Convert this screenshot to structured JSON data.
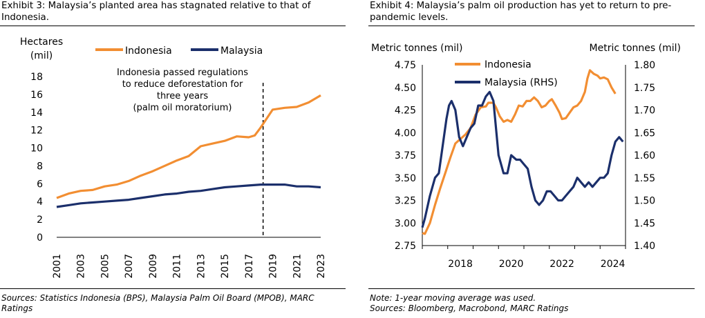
{
  "exhibit3": {
    "title_line1": "Exhibit 3: Malaysia’s planted area has stagnated relative to that of",
    "title_line2": "Indonesia.",
    "source_line1": "Sources: Statistics Indonesia (BPS), Malaysia Palm Oil Board (MPOB), MARC",
    "source_line2": "Ratings"
  },
  "exhibit4": {
    "title_line1": "Exhibit 4: Malaysia’s palm oil production has yet to return to pre-",
    "title_line2": "pandemic levels.",
    "note": "Note: 1-year moving average was used.",
    "source_line": "Sources: Bloomberg, Macrobond, MARC Ratings"
  },
  "chart_data": [
    {
      "type": "line",
      "ylabel_line1": "Hectares",
      "ylabel_line2": "(mil)",
      "ylim": [
        0,
        18
      ],
      "yticks": [
        0,
        2,
        4,
        6,
        8,
        10,
        12,
        14,
        16,
        18
      ],
      "xlim": [
        2001,
        2023
      ],
      "xticks": [
        "2001",
        "2003",
        "2005",
        "2007",
        "2009",
        "2011",
        "2013",
        "2015",
        "2017",
        "2019",
        "2021",
        "2023"
      ],
      "legend_placement": "top",
      "grid": false,
      "annotation": {
        "lines": [
          "Indonesia passed regulations",
          "to reduce deforestation for",
          "three years",
          "(palm oil moratorium)"
        ],
        "x": 2018.2
      },
      "series": [
        {
          "name": "Indonesia",
          "color": "#f28e32",
          "points": [
            [
              2001,
              4.4
            ],
            [
              2002,
              4.9
            ],
            [
              2003,
              5.2
            ],
            [
              2004,
              5.3
            ],
            [
              2005,
              5.7
            ],
            [
              2006,
              5.9
            ],
            [
              2007,
              6.3
            ],
            [
              2008,
              6.9
            ],
            [
              2009,
              7.4
            ],
            [
              2010,
              8.0
            ],
            [
              2011,
              8.6
            ],
            [
              2012,
              9.1
            ],
            [
              2013,
              10.2
            ],
            [
              2014,
              10.5
            ],
            [
              2015,
              10.8
            ],
            [
              2016,
              11.3
            ],
            [
              2017,
              11.2
            ],
            [
              2017.5,
              11.4
            ],
            [
              2018,
              12.3
            ],
            [
              2019,
              14.3
            ],
            [
              2020,
              14.5
            ],
            [
              2021,
              14.6
            ],
            [
              2022,
              15.1
            ],
            [
              2023,
              15.9
            ]
          ]
        },
        {
          "name": "Malaysia",
          "color": "#1b2f6b",
          "points": [
            [
              2001,
              3.4
            ],
            [
              2002,
              3.6
            ],
            [
              2003,
              3.8
            ],
            [
              2004,
              3.9
            ],
            [
              2005,
              4.0
            ],
            [
              2006,
              4.1
            ],
            [
              2007,
              4.2
            ],
            [
              2008,
              4.4
            ],
            [
              2009,
              4.6
            ],
            [
              2010,
              4.8
            ],
            [
              2011,
              4.9
            ],
            [
              2012,
              5.1
            ],
            [
              2013,
              5.2
            ],
            [
              2014,
              5.4
            ],
            [
              2015,
              5.6
            ],
            [
              2016,
              5.7
            ],
            [
              2017,
              5.8
            ],
            [
              2018,
              5.9
            ],
            [
              2019,
              5.9
            ],
            [
              2020,
              5.9
            ],
            [
              2021,
              5.7
            ],
            [
              2022,
              5.7
            ],
            [
              2023,
              5.6
            ]
          ]
        }
      ]
    },
    {
      "type": "line",
      "ylabel_left": "Metric tonnes (mil)",
      "ylabel_right": "Metric tonnes (mil)",
      "ylim_left": [
        2.75,
        4.75
      ],
      "yticks_left": [
        2.75,
        3.0,
        3.25,
        3.5,
        3.75,
        4.0,
        4.25,
        4.5,
        4.75
      ],
      "ytick_labels_left": [
        "2.75",
        "3.00",
        "3.25",
        "3.50",
        "3.75",
        "4.00",
        "4.25",
        "4.50",
        "4.75"
      ],
      "ylim_right": [
        1.4,
        1.8
      ],
      "yticks_right": [
        1.4,
        1.45,
        1.5,
        1.55,
        1.6,
        1.65,
        1.7,
        1.75,
        1.8
      ],
      "ytick_labels_right": [
        "1.40",
        "1.45",
        "1.50",
        "1.55",
        "1.60",
        "1.65",
        "1.70",
        "1.75",
        "1.80"
      ],
      "xlim": [
        2017,
        2025
      ],
      "xticks": [
        2018,
        2020,
        2022,
        2024
      ],
      "xtick_labels": [
        "2018",
        "2020",
        "2022",
        "2024"
      ],
      "legend_placement": "top-left",
      "grid": false,
      "series": [
        {
          "name": "Indonesia",
          "axis": "left",
          "color": "#f28e32",
          "points": [
            [
              2017.0,
              2.89
            ],
            [
              2017.1,
              2.88
            ],
            [
              2017.3,
              3.0
            ],
            [
              2017.5,
              3.2
            ],
            [
              2017.7,
              3.38
            ],
            [
              2017.9,
              3.55
            ],
            [
              2018.1,
              3.72
            ],
            [
              2018.3,
              3.88
            ],
            [
              2018.5,
              3.93
            ],
            [
              2018.7,
              3.98
            ],
            [
              2018.9,
              4.05
            ],
            [
              2019.1,
              4.2
            ],
            [
              2019.3,
              4.28
            ],
            [
              2019.5,
              4.29
            ],
            [
              2019.6,
              4.33
            ],
            [
              2019.8,
              4.33
            ],
            [
              2019.9,
              4.28
            ],
            [
              2020.05,
              4.18
            ],
            [
              2020.2,
              4.12
            ],
            [
              2020.35,
              4.14
            ],
            [
              2020.5,
              4.12
            ],
            [
              2020.65,
              4.2
            ],
            [
              2020.8,
              4.3
            ],
            [
              2020.95,
              4.29
            ],
            [
              2021.1,
              4.35
            ],
            [
              2021.25,
              4.35
            ],
            [
              2021.4,
              4.39
            ],
            [
              2021.55,
              4.35
            ],
            [
              2021.7,
              4.28
            ],
            [
              2021.85,
              4.3
            ],
            [
              2022.0,
              4.35
            ],
            [
              2022.1,
              4.37
            ],
            [
              2022.25,
              4.3
            ],
            [
              2022.4,
              4.22
            ],
            [
              2022.5,
              4.15
            ],
            [
              2022.65,
              4.16
            ],
            [
              2022.8,
              4.22
            ],
            [
              2022.95,
              4.28
            ],
            [
              2023.1,
              4.3
            ],
            [
              2023.25,
              4.35
            ],
            [
              2023.4,
              4.45
            ],
            [
              2023.5,
              4.6
            ],
            [
              2023.6,
              4.69
            ],
            [
              2023.75,
              4.65
            ],
            [
              2023.9,
              4.63
            ],
            [
              2024.0,
              4.6
            ],
            [
              2024.15,
              4.61
            ],
            [
              2024.3,
              4.59
            ],
            [
              2024.45,
              4.5
            ],
            [
              2024.6,
              4.43
            ]
          ]
        },
        {
          "name": "Malaysia (RHS)",
          "axis": "right",
          "color": "#1b2f6b",
          "points": [
            [
              2017.0,
              1.44
            ],
            [
              2017.1,
              1.46
            ],
            [
              2017.3,
              1.51
            ],
            [
              2017.5,
              1.55
            ],
            [
              2017.65,
              1.56
            ],
            [
              2017.8,
              1.62
            ],
            [
              2017.95,
              1.68
            ],
            [
              2018.05,
              1.71
            ],
            [
              2018.15,
              1.72
            ],
            [
              2018.3,
              1.7
            ],
            [
              2018.45,
              1.64
            ],
            [
              2018.6,
              1.62
            ],
            [
              2018.75,
              1.64
            ],
            [
              2018.9,
              1.66
            ],
            [
              2019.05,
              1.67
            ],
            [
              2019.2,
              1.71
            ],
            [
              2019.35,
              1.71
            ],
            [
              2019.5,
              1.73
            ],
            [
              2019.65,
              1.74
            ],
            [
              2019.8,
              1.72
            ],
            [
              2020.0,
              1.6
            ],
            [
              2020.2,
              1.56
            ],
            [
              2020.35,
              1.56
            ],
            [
              2020.5,
              1.6
            ],
            [
              2020.7,
              1.59
            ],
            [
              2020.85,
              1.59
            ],
            [
              2021.0,
              1.58
            ],
            [
              2021.15,
              1.57
            ],
            [
              2021.3,
              1.53
            ],
            [
              2021.45,
              1.5
            ],
            [
              2021.6,
              1.49
            ],
            [
              2021.75,
              1.5
            ],
            [
              2021.9,
              1.52
            ],
            [
              2022.05,
              1.52
            ],
            [
              2022.2,
              1.51
            ],
            [
              2022.35,
              1.5
            ],
            [
              2022.5,
              1.5
            ],
            [
              2022.65,
              1.51
            ],
            [
              2022.8,
              1.52
            ],
            [
              2022.95,
              1.53
            ],
            [
              2023.1,
              1.55
            ],
            [
              2023.25,
              1.54
            ],
            [
              2023.4,
              1.53
            ],
            [
              2023.55,
              1.54
            ],
            [
              2023.7,
              1.53
            ],
            [
              2023.85,
              1.54
            ],
            [
              2024.0,
              1.55
            ],
            [
              2024.15,
              1.55
            ],
            [
              2024.3,
              1.56
            ],
            [
              2024.45,
              1.6
            ],
            [
              2024.6,
              1.63
            ],
            [
              2024.75,
              1.64
            ],
            [
              2024.9,
              1.63
            ]
          ]
        }
      ]
    }
  ]
}
